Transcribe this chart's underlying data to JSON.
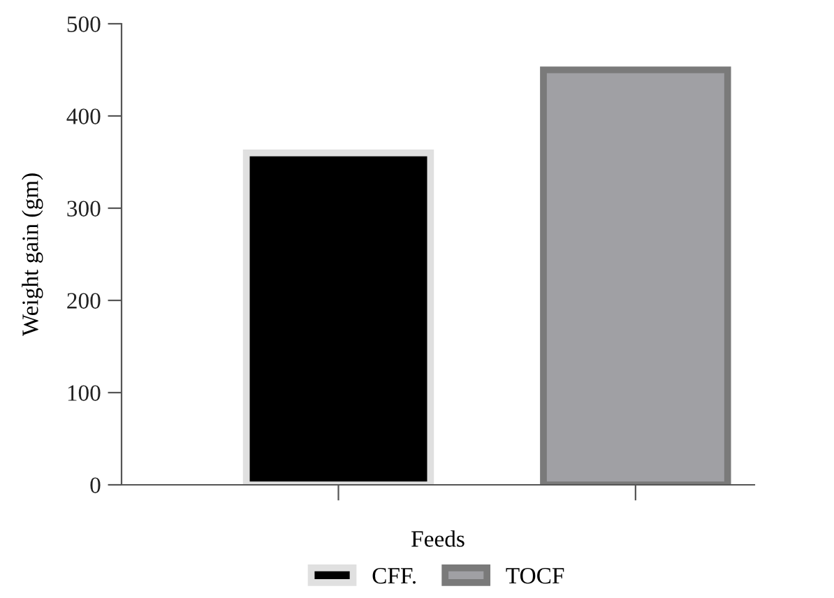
{
  "chart_data": {
    "type": "bar",
    "xlabel": "Feeds",
    "ylabel": "Weight gain (gm)",
    "categories": [
      null,
      null
    ],
    "series": [
      {
        "name": "CFF.",
        "color": "#000000",
        "values": [
          360,
          null
        ]
      },
      {
        "name": "TOCF",
        "color": "#a0a0a4",
        "values": [
          null,
          450
        ]
      }
    ],
    "ylim": [
      0,
      500
    ],
    "yticks": [
      0,
      100,
      200,
      300,
      400,
      500
    ],
    "grid": false,
    "legend": "bottom"
  }
}
